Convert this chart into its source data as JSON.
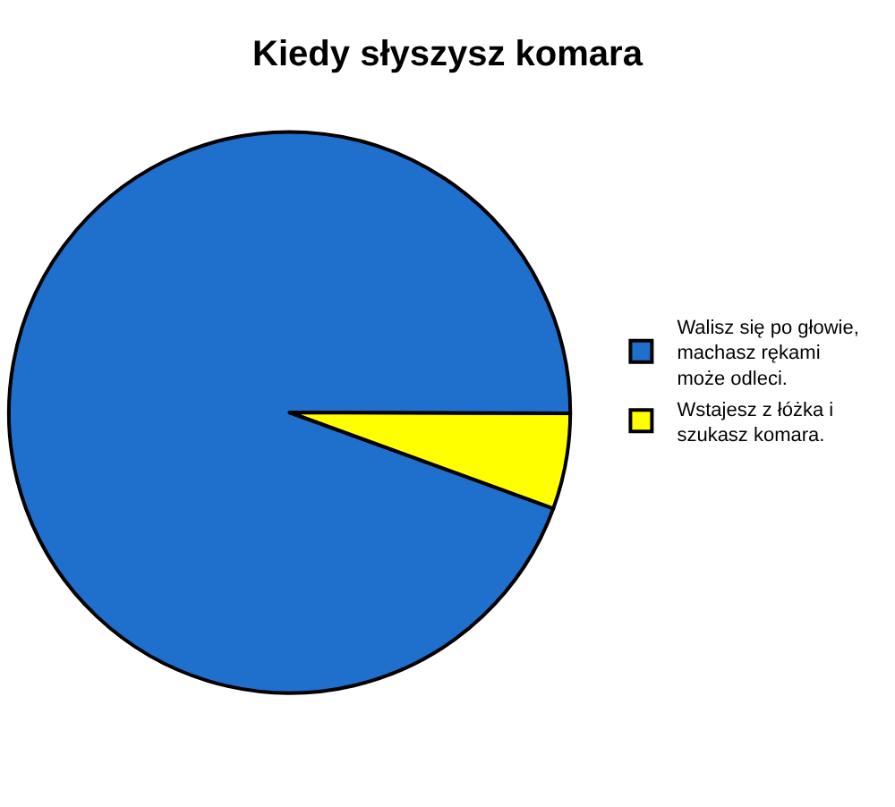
{
  "chart_data": {
    "type": "pie",
    "title": "Kiedy słyszysz komara",
    "categories": [
      "Walisz się po głowie,\nmachasz rękami\nmoże odleci.",
      "Wstajesz z łóżka i\nszukasz komara."
    ],
    "values": [
      94.5,
      5.5
    ],
    "colors": [
      "#1f6fcc",
      "#ffff00"
    ],
    "legend": "right"
  }
}
